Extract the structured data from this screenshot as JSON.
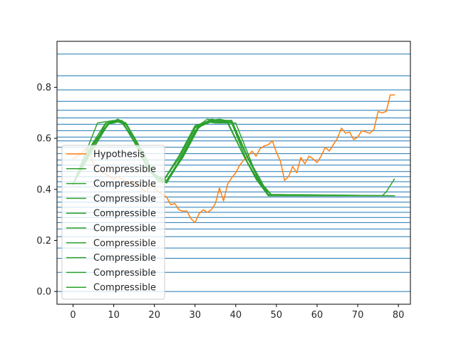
{
  "chart_data": {
    "type": "line",
    "title": "",
    "xlabel": "",
    "ylabel": "",
    "xlim": [
      -3.95,
      82.95
    ],
    "ylim": [
      -0.05,
      0.98
    ],
    "xticks": [
      0,
      10,
      20,
      30,
      40,
      50,
      60,
      70,
      80
    ],
    "xtick_labels": [
      "0",
      "10",
      "20",
      "30",
      "40",
      "50",
      "60",
      "70",
      "80"
    ],
    "yticks": [
      0.0,
      0.2,
      0.4,
      0.6,
      0.8
    ],
    "ytick_labels": [
      "0.0",
      "0.2",
      "0.4",
      "0.6",
      "0.8"
    ],
    "horizontal_lines": [
      0.0,
      0.075,
      0.13,
      0.17,
      0.215,
      0.245,
      0.27,
      0.29,
      0.31,
      0.33,
      0.35,
      0.37,
      0.39,
      0.41,
      0.43,
      0.45,
      0.47,
      0.495,
      0.515,
      0.54,
      0.565,
      0.59,
      0.605,
      0.63,
      0.655,
      0.68,
      0.71,
      0.745,
      0.79,
      0.845,
      0.93
    ],
    "horizontal_line_color": "#1f77b4",
    "legend_position": "lower left",
    "series": [
      {
        "name": "Hypothesis",
        "color": "#ff7f0e",
        "x": [
          0,
          1,
          2,
          3,
          4,
          5,
          6,
          7,
          8,
          9,
          10,
          11,
          12,
          13,
          14,
          15,
          16,
          17,
          18,
          19,
          20,
          21,
          22,
          23,
          24,
          25,
          26,
          27,
          28,
          29,
          30,
          31,
          32,
          33,
          34,
          35,
          36,
          37,
          38,
          39,
          40,
          41,
          42,
          43,
          44,
          45,
          46,
          47,
          48,
          49,
          50,
          51,
          52,
          53,
          54,
          55,
          56,
          57,
          58,
          59,
          60,
          61,
          62,
          63,
          64,
          65,
          66,
          67,
          68,
          69,
          70,
          71,
          72,
          73,
          74,
          75,
          76,
          77,
          78,
          79
        ],
        "y": [
          0.52,
          0.53,
          0.54,
          0.56,
          0.55,
          0.5,
          0.48,
          0.47,
          0.46,
          0.45,
          0.44,
          0.45,
          0.44,
          0.43,
          0.43,
          0.42,
          0.42,
          0.4,
          0.39,
          0.42,
          0.41,
          0.39,
          0.38,
          0.37,
          0.34,
          0.345,
          0.32,
          0.315,
          0.315,
          0.285,
          0.27,
          0.305,
          0.32,
          0.31,
          0.32,
          0.345,
          0.405,
          0.355,
          0.42,
          0.445,
          0.465,
          0.495,
          0.515,
          0.53,
          0.55,
          0.53,
          0.56,
          0.57,
          0.575,
          0.59,
          0.545,
          0.51,
          0.435,
          0.45,
          0.49,
          0.465,
          0.525,
          0.5,
          0.53,
          0.52,
          0.505,
          0.53,
          0.565,
          0.55,
          0.575,
          0.6,
          0.64,
          0.62,
          0.625,
          0.595,
          0.605,
          0.63,
          0.625,
          0.62,
          0.635,
          0.705,
          0.7,
          0.705,
          0.77,
          0.77
        ]
      },
      {
        "name": "Compressible",
        "color": "#2ca02c",
        "x": [
          0,
          6,
          10,
          12,
          14,
          18,
          21,
          23,
          25,
          30,
          33,
          35,
          37,
          40,
          46,
          49,
          79
        ],
        "y": [
          0.42,
          0.66,
          0.67,
          0.66,
          0.62,
          0.49,
          0.43,
          0.43,
          0.48,
          0.63,
          0.665,
          0.66,
          0.66,
          0.66,
          0.42,
          0.375,
          0.375
        ]
      },
      {
        "name": "Compressible",
        "color": "#2ca02c",
        "x": [
          0,
          6,
          9,
          11,
          13,
          17,
          20,
          23,
          27,
          31,
          34,
          36,
          39,
          43,
          46,
          49,
          79
        ],
        "y": [
          0.42,
          0.6,
          0.66,
          0.675,
          0.66,
          0.55,
          0.455,
          0.43,
          0.53,
          0.65,
          0.675,
          0.67,
          0.66,
          0.5,
          0.42,
          0.375,
          0.375
        ]
      },
      {
        "name": "Compressible",
        "color": "#2ca02c",
        "x": [
          0,
          5,
          9,
          11,
          13,
          17,
          20,
          23,
          27,
          31,
          34,
          36,
          39,
          43,
          46,
          49,
          79
        ],
        "y": [
          0.42,
          0.58,
          0.66,
          0.665,
          0.66,
          0.55,
          0.455,
          0.425,
          0.53,
          0.65,
          0.665,
          0.665,
          0.67,
          0.52,
          0.43,
          0.375,
          0.375
        ]
      },
      {
        "name": "Compressible",
        "color": "#2ca02c",
        "x": [
          0,
          5,
          9,
          10,
          12,
          16,
          19,
          22,
          26,
          30,
          33,
          35,
          38,
          42,
          45,
          48,
          79
        ],
        "y": [
          0.42,
          0.56,
          0.665,
          0.67,
          0.665,
          0.56,
          0.47,
          0.43,
          0.52,
          0.64,
          0.675,
          0.67,
          0.665,
          0.53,
          0.445,
          0.375,
          0.375
        ]
      },
      {
        "name": "Compressible",
        "color": "#2ca02c",
        "x": [
          0,
          5,
          9,
          11,
          13,
          17,
          20,
          23,
          27,
          31,
          34,
          36,
          39,
          43,
          46,
          48,
          79
        ],
        "y": [
          0.42,
          0.57,
          0.665,
          0.665,
          0.655,
          0.55,
          0.46,
          0.435,
          0.535,
          0.655,
          0.67,
          0.67,
          0.67,
          0.525,
          0.44,
          0.38,
          0.375
        ]
      },
      {
        "name": "Compressible",
        "color": "#2ca02c",
        "x": [
          0,
          4,
          8,
          10,
          12,
          16,
          19,
          22,
          26,
          30,
          33,
          35,
          38,
          42,
          45,
          48,
          79
        ],
        "y": [
          0.42,
          0.56,
          0.66,
          0.665,
          0.67,
          0.565,
          0.47,
          0.43,
          0.53,
          0.645,
          0.665,
          0.665,
          0.66,
          0.53,
          0.45,
          0.38,
          0.375
        ]
      },
      {
        "name": "Compressible",
        "color": "#2ca02c",
        "x": [
          0,
          5,
          8,
          10,
          12,
          16,
          19,
          22,
          26,
          30,
          33,
          35,
          38,
          42,
          45,
          48,
          79
        ],
        "y": [
          0.42,
          0.57,
          0.655,
          0.66,
          0.67,
          0.56,
          0.47,
          0.425,
          0.53,
          0.65,
          0.665,
          0.67,
          0.665,
          0.53,
          0.44,
          0.375,
          0.375
        ]
      },
      {
        "name": "Compressible",
        "color": "#2ca02c",
        "x": [
          0,
          5,
          9,
          11,
          13,
          17,
          20,
          23,
          27,
          31,
          34,
          36,
          39,
          43,
          46,
          48,
          79
        ],
        "y": [
          0.42,
          0.58,
          0.665,
          0.665,
          0.655,
          0.545,
          0.455,
          0.425,
          0.53,
          0.65,
          0.67,
          0.675,
          0.665,
          0.52,
          0.43,
          0.375,
          0.375
        ]
      },
      {
        "name": "Compressible",
        "color": "#2ca02c",
        "x": [
          0,
          5,
          9,
          11,
          13,
          17,
          20,
          23,
          27,
          31,
          34,
          36,
          39,
          43,
          46,
          48,
          76,
          77,
          79
        ],
        "y": [
          0.42,
          0.58,
          0.665,
          0.67,
          0.66,
          0.545,
          0.455,
          0.43,
          0.525,
          0.645,
          0.665,
          0.665,
          0.66,
          0.52,
          0.44,
          0.375,
          0.375,
          0.39,
          0.44
        ]
      }
    ]
  }
}
